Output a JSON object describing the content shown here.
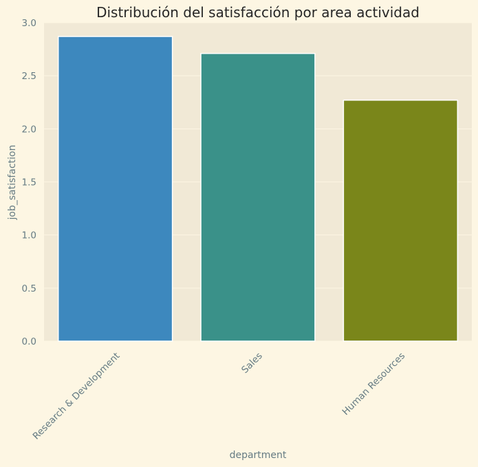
{
  "chart_data": {
    "type": "bar",
    "title": "Distribución del satisfacción por area actividad",
    "xlabel": "department",
    "ylabel": "job_satisfaction",
    "categories": [
      "Research & Development",
      "Sales",
      "Human Resources"
    ],
    "values": [
      2.87,
      2.71,
      2.27
    ],
    "ylim": [
      0,
      3.0
    ],
    "yticks": [
      "0.0",
      "0.5",
      "1.0",
      "1.5",
      "2.0",
      "2.5",
      "3.0"
    ],
    "grid": true,
    "legend": "none",
    "colors": {
      "page_background": "#fdf6e3",
      "plot_background": "#f1e9d6",
      "grid": "#fdf6e3",
      "text": "#657b83",
      "title": "#262626",
      "bars": [
        "#3d88be",
        "#3a9189",
        "#7a861a"
      ]
    }
  }
}
